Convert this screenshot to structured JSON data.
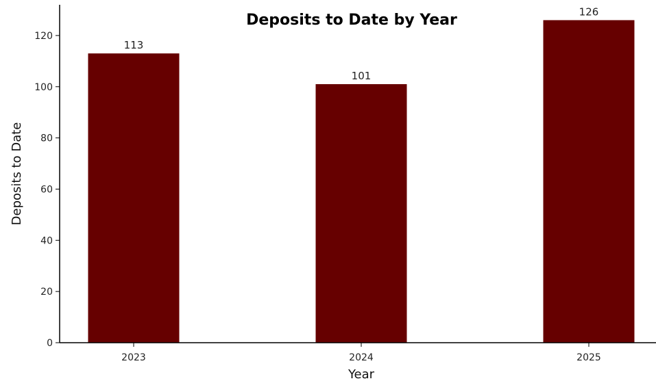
{
  "chart_data": {
    "type": "bar",
    "title": "Deposits to Date by Year",
    "xlabel": "Year",
    "ylabel": "Deposits to Date",
    "categories": [
      "2023",
      "2024",
      "2025"
    ],
    "values": [
      113,
      101,
      126
    ],
    "data_labels": [
      "113",
      "101",
      "126"
    ],
    "ylim": [
      0,
      132
    ],
    "yticks": [
      0,
      20,
      40,
      60,
      80,
      100,
      120
    ],
    "ytick_labels": [
      "0",
      "20",
      "40",
      "60",
      "80",
      "100",
      "120"
    ],
    "grid": false,
    "legend": "none",
    "bar_color": "#660000"
  }
}
